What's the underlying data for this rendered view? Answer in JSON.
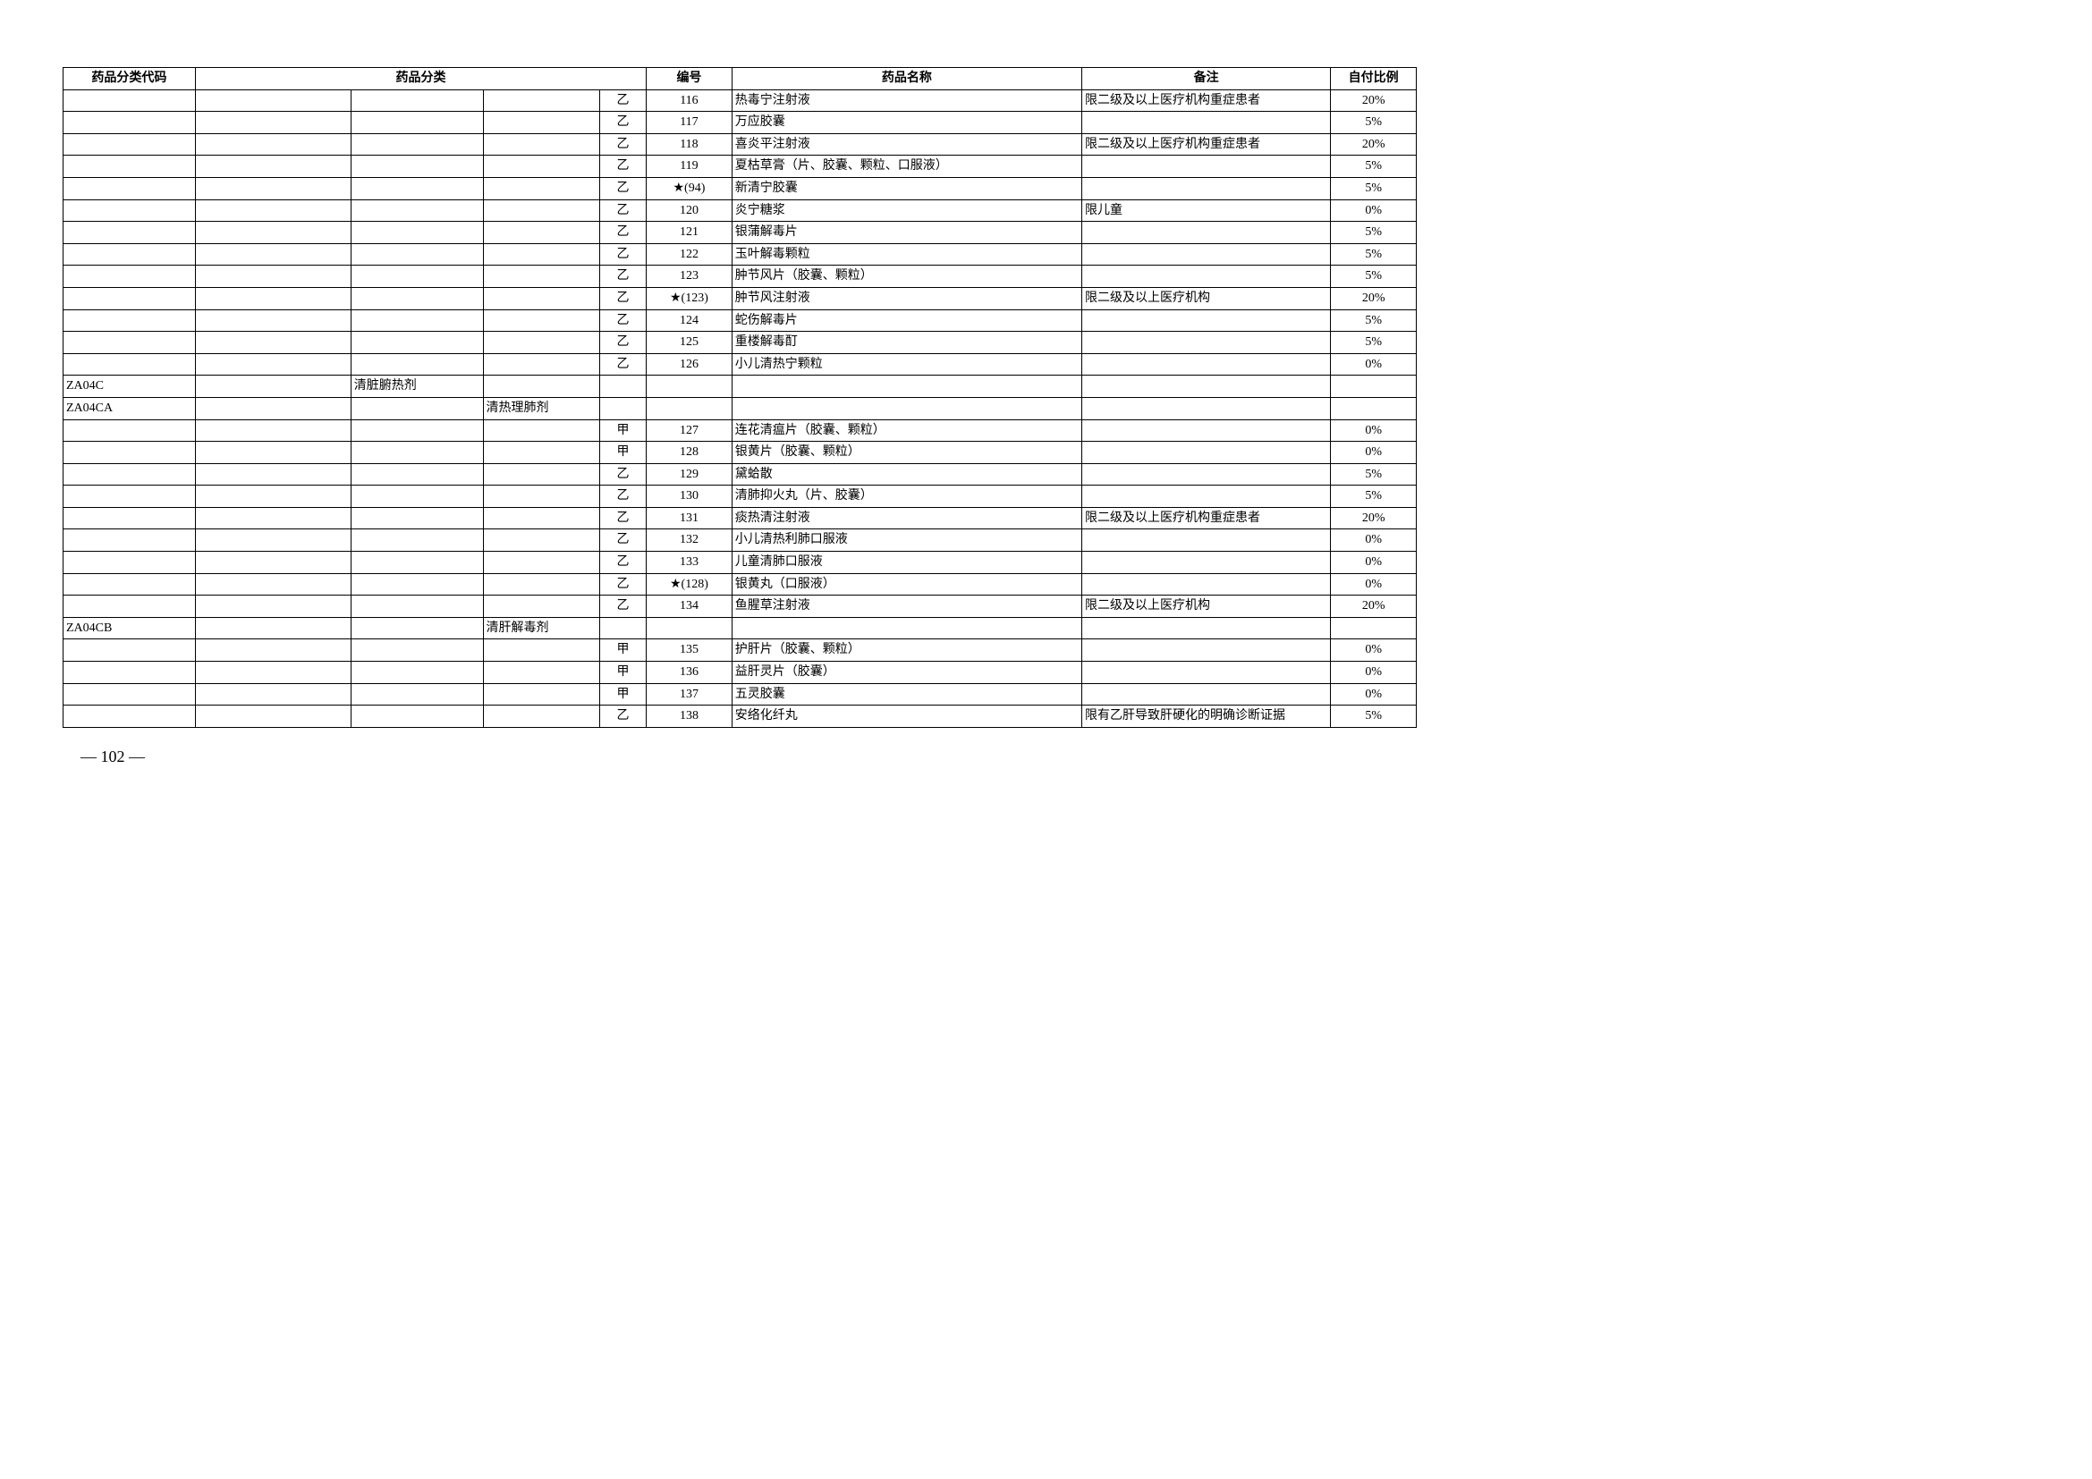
{
  "headers": {
    "code": "药品分类代码",
    "category": "药品分类",
    "number": "编号",
    "name": "药品名称",
    "note": "备注",
    "ratio": "自付比例"
  },
  "rows": [
    {
      "code": "",
      "cat1": "",
      "cat2": "",
      "cat3": "",
      "cls": "乙",
      "num": "116",
      "name": "热毒宁注射液",
      "note": "限二级及以上医疗机构重症患者",
      "ratio": "20%"
    },
    {
      "code": "",
      "cat1": "",
      "cat2": "",
      "cat3": "",
      "cls": "乙",
      "num": "117",
      "name": "万应胶囊",
      "note": "",
      "ratio": "5%"
    },
    {
      "code": "",
      "cat1": "",
      "cat2": "",
      "cat3": "",
      "cls": "乙",
      "num": "118",
      "name": "喜炎平注射液",
      "note": "限二级及以上医疗机构重症患者",
      "ratio": "20%"
    },
    {
      "code": "",
      "cat1": "",
      "cat2": "",
      "cat3": "",
      "cls": "乙",
      "num": "119",
      "name": "夏枯草膏（片、胶囊、颗粒、口服液）",
      "note": "",
      "ratio": "5%"
    },
    {
      "code": "",
      "cat1": "",
      "cat2": "",
      "cat3": "",
      "cls": "乙",
      "num": "★(94)",
      "name": "新清宁胶囊",
      "note": "",
      "ratio": "5%"
    },
    {
      "code": "",
      "cat1": "",
      "cat2": "",
      "cat3": "",
      "cls": "乙",
      "num": "120",
      "name": "炎宁糖浆",
      "note": "限儿童",
      "ratio": "0%"
    },
    {
      "code": "",
      "cat1": "",
      "cat2": "",
      "cat3": "",
      "cls": "乙",
      "num": "121",
      "name": "银蒲解毒片",
      "note": "",
      "ratio": "5%"
    },
    {
      "code": "",
      "cat1": "",
      "cat2": "",
      "cat3": "",
      "cls": "乙",
      "num": "122",
      "name": "玉叶解毒颗粒",
      "note": "",
      "ratio": "5%"
    },
    {
      "code": "",
      "cat1": "",
      "cat2": "",
      "cat3": "",
      "cls": "乙",
      "num": "123",
      "name": "肿节风片（胶囊、颗粒）",
      "note": "",
      "ratio": "5%"
    },
    {
      "code": "",
      "cat1": "",
      "cat2": "",
      "cat3": "",
      "cls": "乙",
      "num": "★(123)",
      "name": "肿节风注射液",
      "note": "限二级及以上医疗机构",
      "ratio": "20%"
    },
    {
      "code": "",
      "cat1": "",
      "cat2": "",
      "cat3": "",
      "cls": "乙",
      "num": "124",
      "name": "蛇伤解毒片",
      "note": "",
      "ratio": "5%"
    },
    {
      "code": "",
      "cat1": "",
      "cat2": "",
      "cat3": "",
      "cls": "乙",
      "num": "125",
      "name": "重楼解毒酊",
      "note": "",
      "ratio": "5%"
    },
    {
      "code": "",
      "cat1": "",
      "cat2": "",
      "cat3": "",
      "cls": "乙",
      "num": "126",
      "name": "小儿清热宁颗粒",
      "note": "",
      "ratio": "0%"
    },
    {
      "code": "ZA04C",
      "cat1": "",
      "cat2": "清脏腑热剂",
      "cat3": "",
      "cls": "",
      "num": "",
      "name": "",
      "note": "",
      "ratio": ""
    },
    {
      "code": "ZA04CA",
      "cat1": "",
      "cat2": "",
      "cat3": "清热理肺剂",
      "cls": "",
      "num": "",
      "name": "",
      "note": "",
      "ratio": ""
    },
    {
      "code": "",
      "cat1": "",
      "cat2": "",
      "cat3": "",
      "cls": "甲",
      "num": "127",
      "name": "连花清瘟片（胶囊、颗粒）",
      "note": "",
      "ratio": "0%"
    },
    {
      "code": "",
      "cat1": "",
      "cat2": "",
      "cat3": "",
      "cls": "甲",
      "num": "128",
      "name": "银黄片（胶囊、颗粒）",
      "note": "",
      "ratio": "0%"
    },
    {
      "code": "",
      "cat1": "",
      "cat2": "",
      "cat3": "",
      "cls": "乙",
      "num": "129",
      "name": "黛蛤散",
      "note": "",
      "ratio": "5%"
    },
    {
      "code": "",
      "cat1": "",
      "cat2": "",
      "cat3": "",
      "cls": "乙",
      "num": "130",
      "name": "清肺抑火丸（片、胶囊）",
      "note": "",
      "ratio": "5%"
    },
    {
      "code": "",
      "cat1": "",
      "cat2": "",
      "cat3": "",
      "cls": "乙",
      "num": "131",
      "name": "痰热清注射液",
      "note": "限二级及以上医疗机构重症患者",
      "ratio": "20%"
    },
    {
      "code": "",
      "cat1": "",
      "cat2": "",
      "cat3": "",
      "cls": "乙",
      "num": "132",
      "name": "小儿清热利肺口服液",
      "note": "",
      "ratio": "0%"
    },
    {
      "code": "",
      "cat1": "",
      "cat2": "",
      "cat3": "",
      "cls": "乙",
      "num": "133",
      "name": "儿童清肺口服液",
      "note": "",
      "ratio": "0%"
    },
    {
      "code": "",
      "cat1": "",
      "cat2": "",
      "cat3": "",
      "cls": "乙",
      "num": "★(128)",
      "name": "银黄丸（口服液）",
      "note": "",
      "ratio": "0%"
    },
    {
      "code": "",
      "cat1": "",
      "cat2": "",
      "cat3": "",
      "cls": "乙",
      "num": "134",
      "name": "鱼腥草注射液",
      "note": "限二级及以上医疗机构",
      "ratio": "20%"
    },
    {
      "code": "ZA04CB",
      "cat1": "",
      "cat2": "",
      "cat3": "清肝解毒剂",
      "cls": "",
      "num": "",
      "name": "",
      "note": "",
      "ratio": ""
    },
    {
      "code": "",
      "cat1": "",
      "cat2": "",
      "cat3": "",
      "cls": "甲",
      "num": "135",
      "name": "护肝片（胶囊、颗粒）",
      "note": "",
      "ratio": "0%"
    },
    {
      "code": "",
      "cat1": "",
      "cat2": "",
      "cat3": "",
      "cls": "甲",
      "num": "136",
      "name": "益肝灵片（胶囊）",
      "note": "",
      "ratio": "0%"
    },
    {
      "code": "",
      "cat1": "",
      "cat2": "",
      "cat3": "",
      "cls": "甲",
      "num": "137",
      "name": "五灵胶囊",
      "note": "",
      "ratio": "0%"
    },
    {
      "code": "",
      "cat1": "",
      "cat2": "",
      "cat3": "",
      "cls": "乙",
      "num": "138",
      "name": "安络化纤丸",
      "note": "限有乙肝导致肝硬化的明确诊断证据",
      "ratio": "5%"
    }
  ],
  "pageNumber": "— 102 —"
}
